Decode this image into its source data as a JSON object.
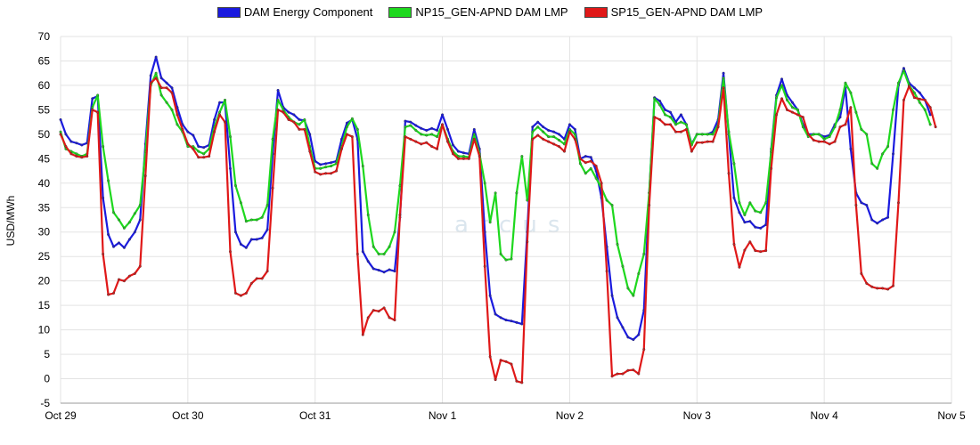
{
  "colors": {
    "grid": "#e3e3e3",
    "axis": "#999999",
    "background": "#ffffff"
  },
  "watermark": "arcus",
  "chart_data": {
    "type": "line",
    "ylabel": "USD/MWh",
    "ylim": [
      -5,
      70
    ],
    "yticks": [
      -5,
      0,
      5,
      10,
      15,
      20,
      25,
      30,
      35,
      40,
      45,
      50,
      55,
      60,
      65,
      70
    ],
    "xlabel": "",
    "x_start": "2023-10-29T00:00",
    "x_step_hours": 1,
    "x_ticks": [
      "Oct 29",
      "Oct 30",
      "Oct 31",
      "Nov 1",
      "Nov 2",
      "Nov 3",
      "Nov 4",
      "Nov 5"
    ],
    "grid": true,
    "legend_position": "top-center",
    "series": [
      {
        "name": "DAM Energy Component",
        "color": "#1a1adf",
        "values": [
          53.0,
          50.0,
          48.5,
          48.2,
          47.8,
          48.2,
          57.3,
          57.8,
          37.0,
          29.5,
          27.0,
          27.8,
          26.8,
          28.5,
          30.0,
          32.5,
          48.0,
          62.0,
          65.8,
          61.5,
          60.5,
          59.5,
          55.5,
          52.0,
          50.5,
          49.8,
          47.5,
          47.3,
          47.8,
          53.0,
          56.5,
          56.5,
          43.0,
          30.0,
          27.5,
          26.8,
          28.5,
          28.5,
          28.8,
          30.5,
          46.0,
          59.0,
          55.5,
          54.5,
          54.0,
          53.0,
          52.8,
          50.0,
          44.5,
          43.8,
          44.0,
          44.2,
          44.5,
          49.0,
          52.3,
          53.0,
          49.0,
          26.0,
          24.0,
          22.5,
          22.2,
          21.8,
          22.3,
          22.0,
          33.0,
          52.7,
          52.5,
          51.8,
          51.2,
          50.8,
          51.2,
          50.8,
          54.0,
          51.0,
          47.8,
          46.5,
          46.2,
          46.0,
          51.0,
          47.0,
          30.0,
          17.0,
          13.2,
          12.5,
          12.0,
          11.8,
          11.5,
          11.2,
          30.0,
          51.5,
          52.5,
          51.5,
          50.8,
          50.5,
          50.0,
          49.0,
          52.0,
          51.0,
          45.0,
          45.5,
          45.3,
          42.5,
          37.0,
          27.0,
          17.0,
          12.5,
          10.5,
          8.5,
          8.0,
          9.0,
          14.0,
          38.0,
          57.5,
          56.8,
          55.0,
          54.5,
          52.5,
          54.0,
          52.0,
          48.0,
          50.0,
          50.0,
          50.0,
          50.5,
          53.0,
          62.5,
          50.0,
          37.0,
          34.0,
          32.0,
          32.2,
          31.0,
          30.8,
          31.5,
          47.0,
          58.0,
          61.3,
          58.0,
          56.5,
          55.0,
          52.0,
          50.0,
          50.0,
          50.0,
          49.5,
          49.8,
          52.0,
          53.5,
          59.5,
          47.0,
          38.0,
          36.0,
          35.5,
          32.5,
          31.8,
          32.5,
          33.0,
          46.0,
          60.0,
          63.5,
          60.5,
          59.5,
          58.5,
          57.0,
          54.0
        ],
        "markers": true
      },
      {
        "name": "NP15_GEN-APND DAM LMP",
        "color": "#1ed81e",
        "values": [
          50.5,
          47.0,
          46.5,
          46.0,
          45.5,
          46.0,
          55.5,
          58.0,
          47.5,
          40.5,
          34.0,
          32.5,
          30.8,
          32.0,
          33.8,
          35.5,
          46.5,
          60.0,
          62.5,
          58.0,
          56.5,
          55.0,
          52.0,
          50.5,
          47.5,
          47.5,
          46.5,
          46.0,
          47.0,
          51.5,
          54.5,
          57.0,
          49.5,
          39.5,
          36.0,
          32.2,
          32.5,
          32.5,
          33.0,
          35.5,
          49.0,
          57.0,
          55.0,
          53.5,
          52.5,
          52.0,
          53.0,
          47.5,
          43.0,
          43.0,
          43.3,
          43.5,
          44.0,
          47.5,
          51.5,
          53.2,
          51.0,
          43.5,
          33.5,
          27.0,
          25.5,
          25.5,
          27.0,
          30.0,
          39.5,
          51.5,
          51.8,
          50.8,
          50.0,
          49.8,
          50.0,
          49.5,
          52.0,
          49.0,
          46.5,
          45.5,
          45.5,
          45.3,
          50.0,
          46.0,
          40.0,
          32.0,
          38.0,
          25.5,
          24.3,
          24.5,
          38.0,
          45.5,
          36.5,
          50.5,
          51.5,
          50.5,
          49.5,
          49.5,
          48.8,
          48.0,
          51.0,
          50.0,
          44.0,
          42.0,
          43.0,
          41.0,
          39.0,
          36.5,
          35.5,
          27.5,
          23.0,
          18.5,
          17.0,
          21.5,
          25.5,
          38.0,
          57.3,
          56.0,
          54.0,
          53.5,
          52.0,
          52.5,
          52.0,
          47.8,
          50.0,
          50.0,
          50.0,
          50.0,
          52.0,
          61.5,
          50.5,
          44.0,
          36.0,
          33.5,
          36.0,
          34.3,
          34.0,
          36.0,
          46.5,
          57.5,
          60.0,
          57.0,
          55.5,
          55.0,
          51.5,
          49.5,
          50.0,
          50.0,
          49.0,
          49.5,
          51.5,
          55.0,
          60.5,
          58.5,
          54.5,
          51.0,
          50.0,
          44.0,
          43.0,
          46.0,
          47.5,
          55.0,
          60.5,
          63.0,
          60.0,
          58.5,
          56.5,
          55.0,
          52.0
        ],
        "markers": true
      },
      {
        "name": "SP15_GEN-APND DAM LMP",
        "color": "#e01818",
        "values": [
          50.0,
          47.5,
          46.0,
          45.5,
          45.3,
          45.5,
          55.0,
          54.5,
          25.5,
          17.2,
          17.5,
          20.3,
          20.0,
          21.0,
          21.5,
          23.0,
          41.5,
          60.5,
          61.5,
          59.5,
          59.5,
          58.5,
          54.0,
          51.0,
          48.0,
          47.0,
          45.3,
          45.3,
          45.5,
          50.5,
          54.0,
          52.5,
          26.0,
          17.5,
          17.0,
          17.5,
          19.5,
          20.5,
          20.5,
          22.0,
          39.0,
          55.0,
          54.5,
          53.0,
          52.5,
          51.0,
          51.0,
          46.5,
          42.3,
          41.8,
          42.0,
          42.0,
          42.5,
          47.0,
          50.0,
          49.5,
          25.5,
          9.0,
          12.5,
          14.0,
          13.8,
          14.5,
          12.5,
          12.0,
          33.5,
          49.5,
          49.0,
          48.5,
          48.0,
          48.3,
          47.5,
          47.0,
          52.0,
          48.5,
          46.0,
          45.0,
          45.0,
          45.0,
          49.0,
          45.5,
          23.0,
          4.5,
          -0.2,
          3.8,
          3.5,
          3.0,
          -0.5,
          -0.8,
          28.0,
          49.0,
          49.8,
          49.0,
          48.5,
          48.0,
          47.5,
          46.5,
          50.5,
          49.0,
          45.0,
          44.2,
          44.5,
          43.5,
          40.0,
          22.0,
          0.5,
          1.0,
          1.0,
          1.7,
          1.8,
          1.0,
          6.0,
          35.5,
          53.5,
          53.0,
          52.0,
          52.0,
          50.5,
          50.5,
          51.0,
          46.5,
          48.3,
          48.3,
          48.5,
          48.5,
          51.5,
          59.5,
          42.0,
          27.5,
          22.8,
          26.3,
          28.0,
          26.2,
          26.0,
          26.2,
          43.0,
          54.0,
          57.3,
          55.0,
          54.5,
          54.0,
          53.5,
          50.0,
          48.8,
          48.5,
          48.5,
          48.0,
          48.5,
          51.5,
          52.0,
          55.5,
          35.5,
          21.5,
          19.5,
          18.8,
          18.5,
          18.5,
          18.3,
          19.0,
          36.0,
          57.0,
          59.8,
          57.5,
          57.2,
          57.0,
          55.5,
          51.5
        ],
        "markers": true
      }
    ]
  }
}
